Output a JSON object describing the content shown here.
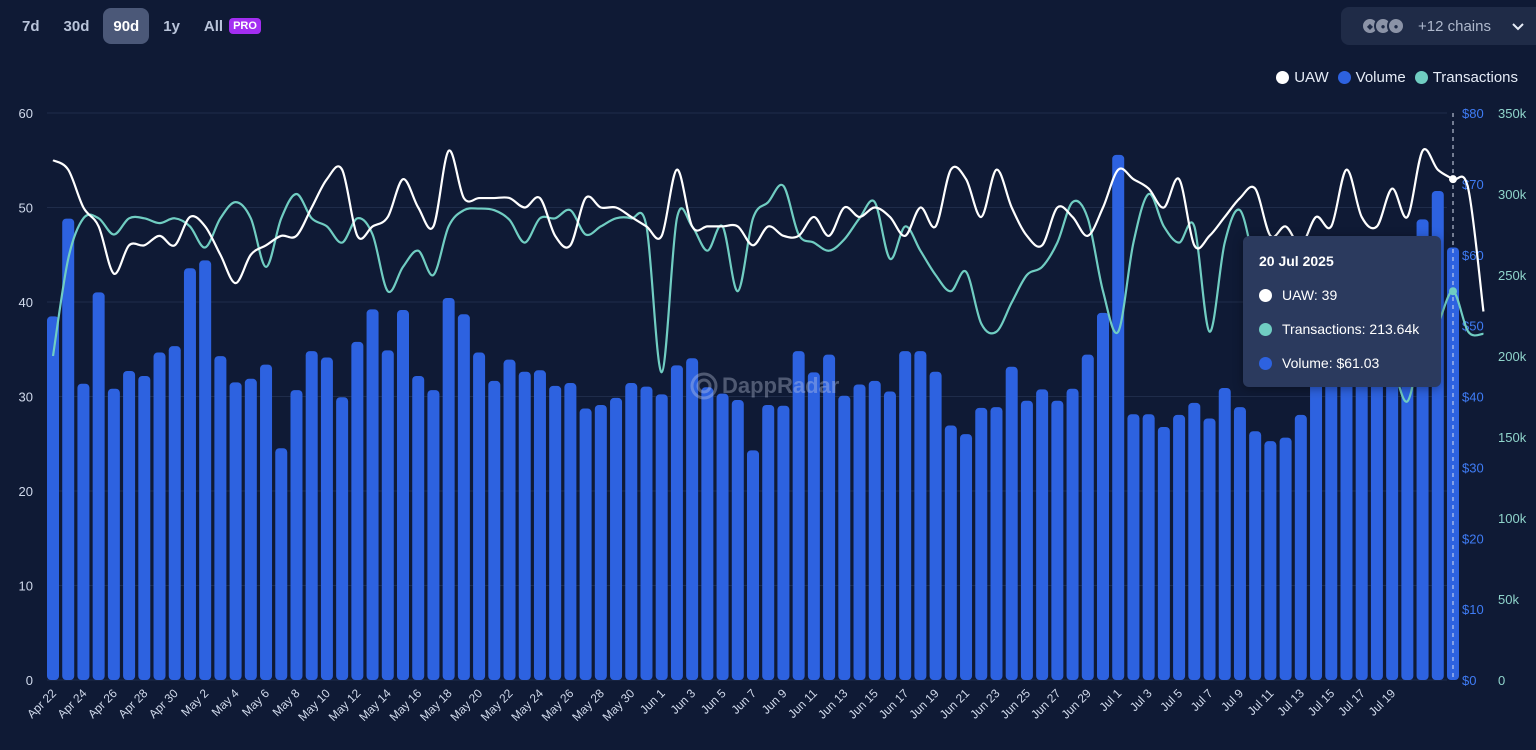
{
  "range": {
    "options": [
      "7d",
      "30d",
      "90d",
      "1y",
      "All"
    ],
    "selected": "90d",
    "pro_badge": "PRO"
  },
  "chains": {
    "label": "+12 chains"
  },
  "watermark": "DappRadar",
  "colors": {
    "uaw": "#ffffff",
    "volume": "#2d62e0",
    "transactions": "#70cdc2",
    "background": "#0f1a35"
  },
  "tooltip": {
    "date": "20 Jul 2025",
    "uaw": "UAW: 39",
    "transactions": "Transactions: 213.64k",
    "volume": "Volume: $61.03"
  },
  "chart_data": {
    "type": "bar+line",
    "legend": [
      "UAW",
      "Volume",
      "Transactions"
    ],
    "legend_position": "top-right",
    "grid": true,
    "x_tick_labels": [
      "Apr 22",
      "Apr 24",
      "Apr 26",
      "Apr 28",
      "Apr 30",
      "May 2",
      "May 4",
      "May 6",
      "May 8",
      "May 10",
      "May 12",
      "May 14",
      "May 16",
      "May 18",
      "May 20",
      "May 22",
      "May 24",
      "May 26",
      "May 28",
      "May 30",
      "Jun 1",
      "Jun 3",
      "Jun 5",
      "Jun 7",
      "Jun 9",
      "Jun 11",
      "Jun 13",
      "Jun 15",
      "Jun 17",
      "Jun 19",
      "Jun 21",
      "Jun 23",
      "Jun 25",
      "Jun 27",
      "Jun 29",
      "Jul 1",
      "Jul 3",
      "Jul 5",
      "Jul 7",
      "Jul 9",
      "Jul 11",
      "Jul 13",
      "Jul 15",
      "Jul 17",
      "Jul 19"
    ],
    "axes": {
      "left": {
        "series": "UAW",
        "min": 0,
        "max": 60,
        "ticks": [
          "0",
          "10",
          "20",
          "30",
          "40",
          "50",
          "60"
        ]
      },
      "right1": {
        "series": "Volume",
        "min": 0,
        "max": 80,
        "ticks": [
          "$0",
          "$10",
          "$20",
          "$30",
          "$40",
          "$50",
          "$60",
          "$70",
          "$80"
        ]
      },
      "right2": {
        "series": "Transactions",
        "min": 0,
        "max": 350000,
        "ticks": [
          "0",
          "50k",
          "100k",
          "150k",
          "200k",
          "250k",
          "300k",
          "350k"
        ]
      }
    },
    "series": [
      {
        "name": "Volume",
        "type": "bar",
        "axis": "right1",
        "values": [
          51.3,
          65.1,
          41.8,
          54.7,
          41.1,
          43.6,
          42.9,
          46.2,
          47.1,
          58.1,
          59.2,
          45.7,
          42.0,
          42.5,
          44.5,
          32.7,
          40.9,
          46.4,
          45.5,
          39.9,
          47.7,
          52.3,
          46.5,
          52.2,
          42.9,
          40.9,
          53.9,
          51.6,
          46.2,
          42.2,
          45.2,
          43.5,
          43.7,
          41.5,
          41.9,
          38.3,
          38.8,
          39.8,
          41.9,
          41.4,
          40.3,
          44.4,
          45.4,
          41.3,
          40.4,
          39.5,
          32.4,
          38.8,
          38.7,
          46.4,
          43.4,
          45.9,
          40.1,
          41.7,
          42.2,
          40.7,
          46.4,
          46.4,
          43.5,
          35.9,
          34.7,
          38.4,
          38.5,
          44.2,
          39.4,
          41.0,
          39.4,
          41.1,
          45.9,
          51.8,
          74.1,
          37.5,
          37.5,
          35.7,
          37.4,
          39.1,
          36.9,
          41.2,
          38.5,
          35.1,
          33.7,
          34.2,
          37.4,
          46.0,
          48.0,
          47.0,
          47.0,
          44.0,
          49.0,
          57.0,
          65.0,
          69.0,
          61.03
        ]
      },
      {
        "name": "UAW",
        "type": "line",
        "axis": "left",
        "values": [
          55,
          54,
          50,
          48,
          43,
          46,
          46,
          47,
          46,
          49,
          48,
          45,
          42,
          45,
          46,
          47,
          47,
          50,
          53,
          54,
          47,
          48,
          49,
          53,
          50,
          48,
          56,
          51,
          51,
          51,
          51,
          50,
          51,
          47,
          46,
          51,
          50,
          50,
          49,
          48,
          47,
          54,
          48,
          48,
          48,
          48,
          46,
          48,
          47,
          47,
          49,
          47,
          50,
          49,
          50,
          49,
          47,
          50,
          48,
          54,
          53,
          49,
          54,
          50,
          47,
          46,
          50,
          49,
          47,
          50,
          54,
          53,
          52,
          50,
          53,
          46,
          47,
          49,
          51,
          52,
          47,
          48,
          46,
          49,
          48,
          54,
          49,
          48,
          52,
          49,
          56,
          54,
          53,
          52,
          39
        ]
      },
      {
        "name": "Transactions",
        "type": "line",
        "axis": "right2",
        "values": [
          200000,
          260000,
          285000,
          285000,
          275000,
          285000,
          285000,
          282000,
          285000,
          280000,
          267000,
          285000,
          295000,
          285000,
          255000,
          285000,
          300000,
          285000,
          280000,
          270000,
          285000,
          275000,
          240000,
          255000,
          265000,
          250000,
          280000,
          290000,
          291000,
          290000,
          284000,
          270000,
          285000,
          285000,
          290000,
          275000,
          280000,
          285000,
          285000,
          280000,
          190000,
          285000,
          280000,
          265000,
          280000,
          240000,
          285000,
          295000,
          305000,
          275000,
          270000,
          265000,
          272000,
          285000,
          295000,
          260000,
          280000,
          265000,
          250000,
          240000,
          252000,
          220000,
          215000,
          233000,
          250000,
          255000,
          270000,
          295000,
          285000,
          240000,
          215000,
          270000,
          300000,
          280000,
          270000,
          280000,
          215000,
          270000,
          290000,
          255000,
          225000,
          215000,
          210000,
          205000,
          195000,
          250000,
          230000,
          210000,
          195000,
          172000,
          210000,
          220000,
          240000,
          215000,
          213640
        ]
      }
    ]
  }
}
